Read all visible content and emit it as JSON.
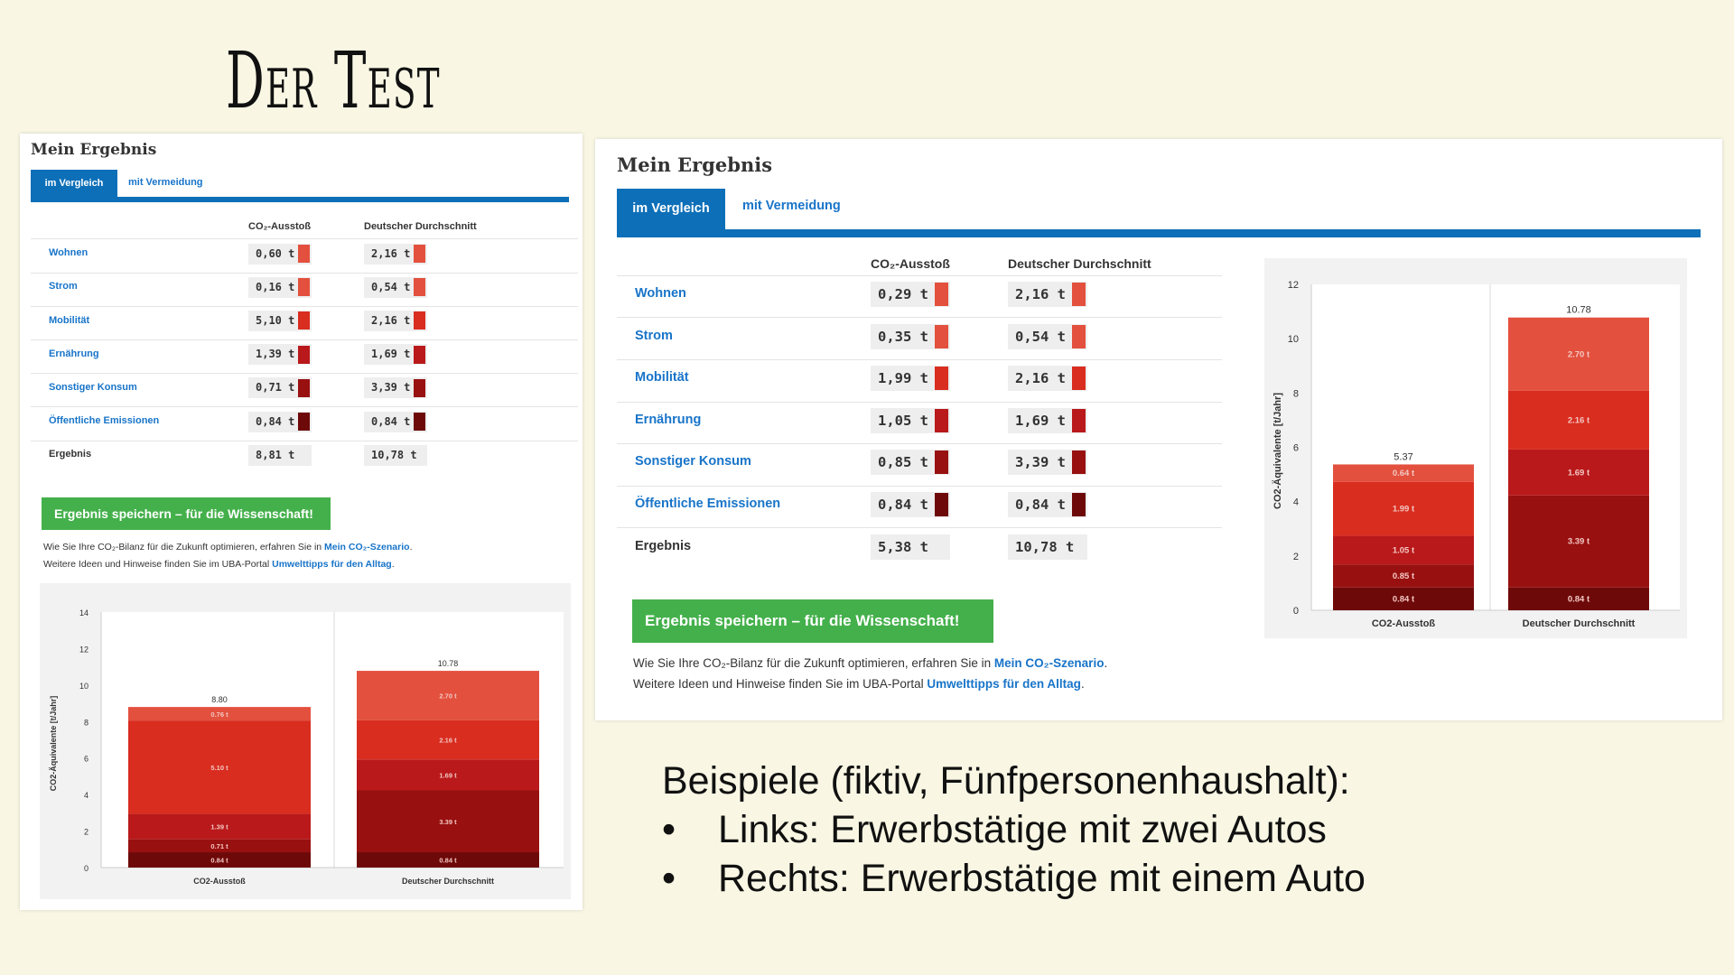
{
  "slide": {
    "title": "Der Test",
    "bullets_intro": "Beispiele (fiktiv, Fünfpersonenhaushalt):",
    "bullets": [
      "Links: Erwerbstätige mit zwei Autos",
      "Rechts: Erwerbstätige mit einem Auto"
    ]
  },
  "panels": [
    {
      "heading": "Mein Ergebnis",
      "tabs": [
        {
          "label": "im Vergleich",
          "active": true
        },
        {
          "label": "mit Vermeidung",
          "active": false
        }
      ],
      "columns": [
        "CO₂-Ausstoß",
        "Deutscher Durchschnitt"
      ],
      "rows": [
        {
          "label": "Wohnen",
          "own": "0,60 t",
          "avg": "2,16 t",
          "color": "#e3503e"
        },
        {
          "label": "Strom",
          "own": "0,16 t",
          "avg": "0,54 t",
          "color": "#e3503e"
        },
        {
          "label": "Mobilität",
          "own": "5,10 t",
          "avg": "2,16 t",
          "color": "#d92d20"
        },
        {
          "label": "Ernährung",
          "own": "1,39 t",
          "avg": "1,69 t",
          "color": "#b9191b"
        },
        {
          "label": "Sonstiger Konsum",
          "own": "0,71 t",
          "avg": "3,39 t",
          "color": "#981010"
        },
        {
          "label": "Öffentliche Emissionen",
          "own": "0,84 t",
          "avg": "0,84 t",
          "color": "#6e0909"
        }
      ],
      "total": {
        "label": "Ergebnis",
        "own": "8,81 t",
        "avg": "10,78 t"
      },
      "save_label": "Ergebnis speichern – für die Wissenschaft!",
      "note1_pre": "Wie Sie Ihre CO₂-Bilanz für die Zukunft optimieren, erfahren Sie in ",
      "note1_link": "Mein CO₂-Szenario",
      "note1_post": ".",
      "note2_pre": "Weitere Ideen und Hinweise finden Sie im UBA-Portal ",
      "note2_link": "Umwelttipps für den Alltag",
      "note2_post": ".",
      "chart_data": {
        "type": "bar",
        "stacked": true,
        "categories": [
          "CO2-Ausstoß",
          "Deutscher Durchschnitt"
        ],
        "ylabel": "CO2-Äquivalente [t/Jahr]",
        "ylim": [
          0,
          14
        ],
        "yticks": [
          0,
          2,
          4,
          6,
          8,
          10,
          12,
          14
        ],
        "series": [
          {
            "color": "#6e0909",
            "values": [
              0.84,
              0.84
            ],
            "labels": [
              "0.84 t",
              "0.84 t"
            ]
          },
          {
            "color": "#981010",
            "values": [
              0.71,
              3.39
            ],
            "labels": [
              "0.71 t",
              "3.39 t"
            ]
          },
          {
            "color": "#b9191b",
            "values": [
              1.39,
              1.69
            ],
            "labels": [
              "1.39 t",
              "1.69 t"
            ]
          },
          {
            "color": "#d92d20",
            "values": [
              5.1,
              2.16
            ],
            "labels": [
              "5.10 t",
              "2.16 t"
            ]
          },
          {
            "color": "#e3503e",
            "values": [
              0.76,
              2.7
            ],
            "labels": [
              "0.76 t",
              "2.70 t"
            ]
          }
        ],
        "totals": [
          "8.80",
          "10.78"
        ],
        "grid": false
      }
    },
    {
      "heading": "Mein Ergebnis",
      "tabs": [
        {
          "label": "im Vergleich",
          "active": true
        },
        {
          "label": "mit Vermeidung",
          "active": false
        }
      ],
      "columns": [
        "CO₂-Ausstoß",
        "Deutscher Durchschnitt"
      ],
      "rows": [
        {
          "label": "Wohnen",
          "own": "0,29 t",
          "avg": "2,16 t",
          "color": "#e3503e"
        },
        {
          "label": "Strom",
          "own": "0,35 t",
          "avg": "0,54 t",
          "color": "#e3503e"
        },
        {
          "label": "Mobilität",
          "own": "1,99 t",
          "avg": "2,16 t",
          "color": "#d92d20"
        },
        {
          "label": "Ernährung",
          "own": "1,05 t",
          "avg": "1,69 t",
          "color": "#b9191b"
        },
        {
          "label": "Sonstiger Konsum",
          "own": "0,85 t",
          "avg": "3,39 t",
          "color": "#981010"
        },
        {
          "label": "Öffentliche Emissionen",
          "own": "0,84 t",
          "avg": "0,84 t",
          "color": "#6e0909"
        }
      ],
      "total": {
        "label": "Ergebnis",
        "own": "5,38 t",
        "avg": "10,78 t"
      },
      "save_label": "Ergebnis speichern – für die Wissenschaft!",
      "note1_pre": "Wie Sie Ihre CO₂-Bilanz für die Zukunft optimieren, erfahren Sie in ",
      "note1_link": "Mein CO₂-Szenario",
      "note1_post": ".",
      "note2_pre": "Weitere Ideen und Hinweise finden Sie im UBA-Portal ",
      "note2_link": "Umwelttipps für den Alltag",
      "note2_post": ".",
      "chart_data": {
        "type": "bar",
        "stacked": true,
        "categories": [
          "CO2-Ausstoß",
          "Deutscher Durchschnitt"
        ],
        "ylabel": "CO2-Äquivalente [t/Jahr]",
        "ylim": [
          0,
          12
        ],
        "yticks": [
          0,
          2,
          4,
          6,
          8,
          10,
          12
        ],
        "series": [
          {
            "color": "#6e0909",
            "values": [
              0.84,
              0.84
            ],
            "labels": [
              "0.84 t",
              "0.84 t"
            ]
          },
          {
            "color": "#981010",
            "values": [
              0.85,
              3.39
            ],
            "labels": [
              "0.85 t",
              "3.39 t"
            ]
          },
          {
            "color": "#b9191b",
            "values": [
              1.05,
              1.69
            ],
            "labels": [
              "1.05 t",
              "1.69 t"
            ]
          },
          {
            "color": "#d92d20",
            "values": [
              1.99,
              2.16
            ],
            "labels": [
              "1.99 t",
              "2.16 t"
            ]
          },
          {
            "color": "#e3503e",
            "values": [
              0.64,
              2.7
            ],
            "labels": [
              "0.64 t",
              "2.70 t"
            ]
          }
        ],
        "totals": [
          "5.37",
          "10.78"
        ],
        "grid": false
      }
    }
  ]
}
